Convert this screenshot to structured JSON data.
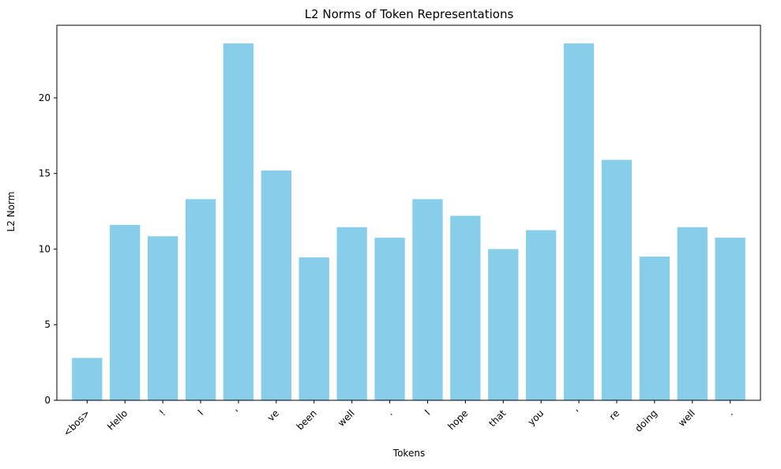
{
  "chart_data": {
    "type": "bar",
    "title": "L2 Norms of Token Representations",
    "xlabel": "Tokens",
    "ylabel": "L2 Norm",
    "categories": [
      "<bos>",
      "Hello",
      "!",
      "I",
      "'",
      "ve",
      "been",
      "well",
      ".",
      "I",
      "hope",
      "that",
      "you",
      "'",
      "re",
      "doing",
      "well",
      "."
    ],
    "values": [
      2.8,
      11.6,
      10.85,
      13.3,
      23.6,
      15.2,
      9.45,
      11.45,
      10.75,
      13.3,
      12.2,
      10.0,
      11.25,
      23.6,
      15.9,
      9.5,
      11.45,
      10.75
    ],
    "ylim": [
      0,
      24.8
    ],
    "yticks": [
      0,
      5,
      10,
      15,
      20
    ],
    "bar_color": "#87CEEB",
    "grid": false,
    "legend": "none"
  }
}
